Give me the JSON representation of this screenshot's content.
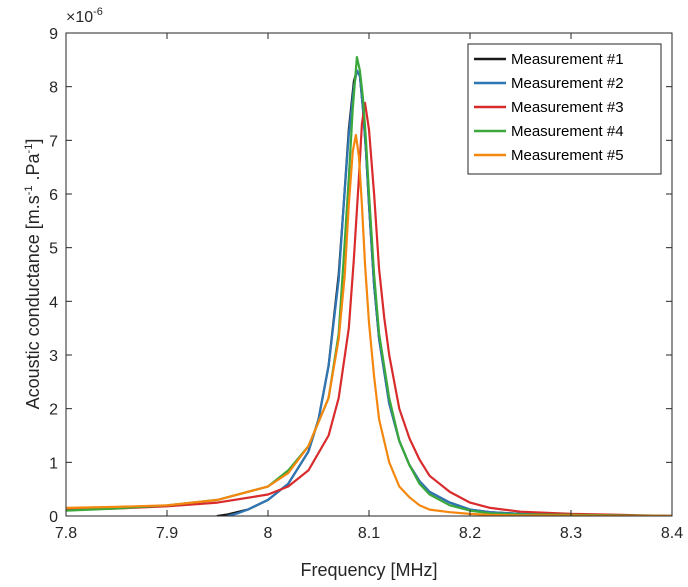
{
  "chart_data": {
    "type": "line",
    "xlabel": "Frequency [MHz]",
    "ylabel": {
      "prefix": "Acoustic conductance [m.s",
      "exp1": "-1",
      "mid": " .Pa",
      "exp2": "-1",
      "suffix": "]"
    },
    "y_multiplier": {
      "base": "×10",
      "exponent": "-6"
    },
    "xlim": [
      7.8,
      8.4
    ],
    "ylim": [
      0,
      9
    ],
    "xticks": [
      7.8,
      7.9,
      8.0,
      8.1,
      8.2,
      8.3,
      8.4
    ],
    "xtick_labels": [
      "7.8",
      "7.9",
      "8",
      "8.1",
      "8.2",
      "8.3",
      "8.4"
    ],
    "yticks": [
      0,
      1,
      2,
      3,
      4,
      5,
      6,
      7,
      8,
      9
    ],
    "ytick_labels": [
      "0",
      "1",
      "2",
      "3",
      "4",
      "5",
      "6",
      "7",
      "8",
      "9"
    ],
    "grid": false,
    "legend_position": "top-right",
    "series": [
      {
        "name": "Measurement #1",
        "color": "#1a1a1a",
        "x": [
          7.95,
          7.96,
          7.98,
          8.0,
          8.02,
          8.04,
          8.05,
          8.06,
          8.07,
          8.075,
          8.08,
          8.085,
          8.088,
          8.091,
          8.094,
          8.097,
          8.1,
          8.105,
          8.11,
          8.12,
          8.13,
          8.14,
          8.15,
          8.16,
          8.18,
          8.2,
          8.22,
          8.25,
          8.3,
          8.35,
          8.4
        ],
        "y": [
          0.0,
          0.03,
          0.12,
          0.3,
          0.6,
          1.2,
          1.8,
          2.8,
          4.5,
          5.8,
          7.2,
          8.1,
          8.3,
          8.2,
          7.6,
          6.8,
          5.8,
          4.3,
          3.3,
          2.1,
          1.4,
          0.95,
          0.65,
          0.45,
          0.25,
          0.12,
          0.07,
          0.04,
          0.02,
          0.01,
          0.0
        ]
      },
      {
        "name": "Measurement #2",
        "color": "#2f76b5",
        "x": [
          7.96,
          7.97,
          7.98,
          8.0,
          8.02,
          8.04,
          8.05,
          8.06,
          8.07,
          8.075,
          8.08,
          8.085,
          8.088,
          8.091,
          8.094,
          8.097,
          8.1,
          8.105,
          8.11,
          8.12,
          8.13,
          8.14,
          8.15,
          8.16,
          8.18,
          8.2,
          8.22,
          8.25,
          8.3,
          8.35,
          8.4
        ],
        "y": [
          0.0,
          0.05,
          0.12,
          0.3,
          0.6,
          1.2,
          1.8,
          2.8,
          4.4,
          5.8,
          7.1,
          8.0,
          8.3,
          8.2,
          7.6,
          6.8,
          5.8,
          4.3,
          3.3,
          2.1,
          1.4,
          0.95,
          0.65,
          0.45,
          0.25,
          0.12,
          0.07,
          0.04,
          0.02,
          0.01,
          0.0
        ]
      },
      {
        "name": "Measurement #3",
        "color": "#d92b2b",
        "x": [
          7.8,
          7.85,
          7.9,
          7.95,
          8.0,
          8.02,
          8.04,
          8.06,
          8.07,
          8.08,
          8.085,
          8.09,
          8.093,
          8.096,
          8.1,
          8.105,
          8.11,
          8.115,
          8.12,
          8.13,
          8.14,
          8.15,
          8.16,
          8.18,
          8.2,
          8.22,
          8.25,
          8.3,
          8.35,
          8.4
        ],
        "y": [
          0.12,
          0.14,
          0.18,
          0.25,
          0.4,
          0.55,
          0.85,
          1.5,
          2.2,
          3.5,
          4.8,
          6.3,
          7.3,
          7.7,
          7.2,
          6.0,
          4.6,
          3.7,
          3.0,
          2.0,
          1.45,
          1.05,
          0.75,
          0.45,
          0.25,
          0.15,
          0.08,
          0.04,
          0.02,
          0.0
        ]
      },
      {
        "name": "Measurement #4",
        "color": "#3aa83a",
        "x": [
          7.8,
          7.85,
          7.9,
          7.95,
          8.0,
          8.02,
          8.04,
          8.06,
          8.07,
          8.075,
          8.08,
          8.084,
          8.088,
          8.091,
          8.094,
          8.097,
          8.1,
          8.105,
          8.11,
          8.12,
          8.13,
          8.14,
          8.15,
          8.16,
          8.18,
          8.2,
          8.22,
          8.25,
          8.3,
          8.35,
          8.4
        ],
        "y": [
          0.1,
          0.14,
          0.2,
          0.3,
          0.55,
          0.85,
          1.3,
          2.2,
          3.4,
          4.8,
          6.3,
          7.6,
          8.55,
          8.3,
          7.8,
          7.0,
          6.0,
          4.5,
          3.4,
          2.2,
          1.4,
          0.95,
          0.6,
          0.4,
          0.2,
          0.1,
          0.05,
          0.03,
          0.02,
          0.01,
          0.0
        ]
      },
      {
        "name": "Measurement #5",
        "color": "#f5870f",
        "x": [
          7.8,
          7.85,
          7.9,
          7.95,
          8.0,
          8.02,
          8.04,
          8.06,
          8.07,
          8.076,
          8.08,
          8.084,
          8.087,
          8.09,
          8.093,
          8.096,
          8.1,
          8.105,
          8.11,
          8.12,
          8.13,
          8.14,
          8.15,
          8.16,
          8.18,
          8.2,
          8.22,
          8.25,
          8.3,
          8.35,
          8.4
        ],
        "y": [
          0.15,
          0.17,
          0.2,
          0.3,
          0.55,
          0.8,
          1.3,
          2.2,
          3.3,
          4.5,
          5.8,
          6.8,
          7.1,
          6.7,
          5.8,
          4.7,
          3.6,
          2.6,
          1.8,
          1.0,
          0.55,
          0.35,
          0.2,
          0.12,
          0.07,
          0.04,
          0.02,
          0.01,
          0.01,
          0.0,
          0.0
        ]
      }
    ]
  }
}
